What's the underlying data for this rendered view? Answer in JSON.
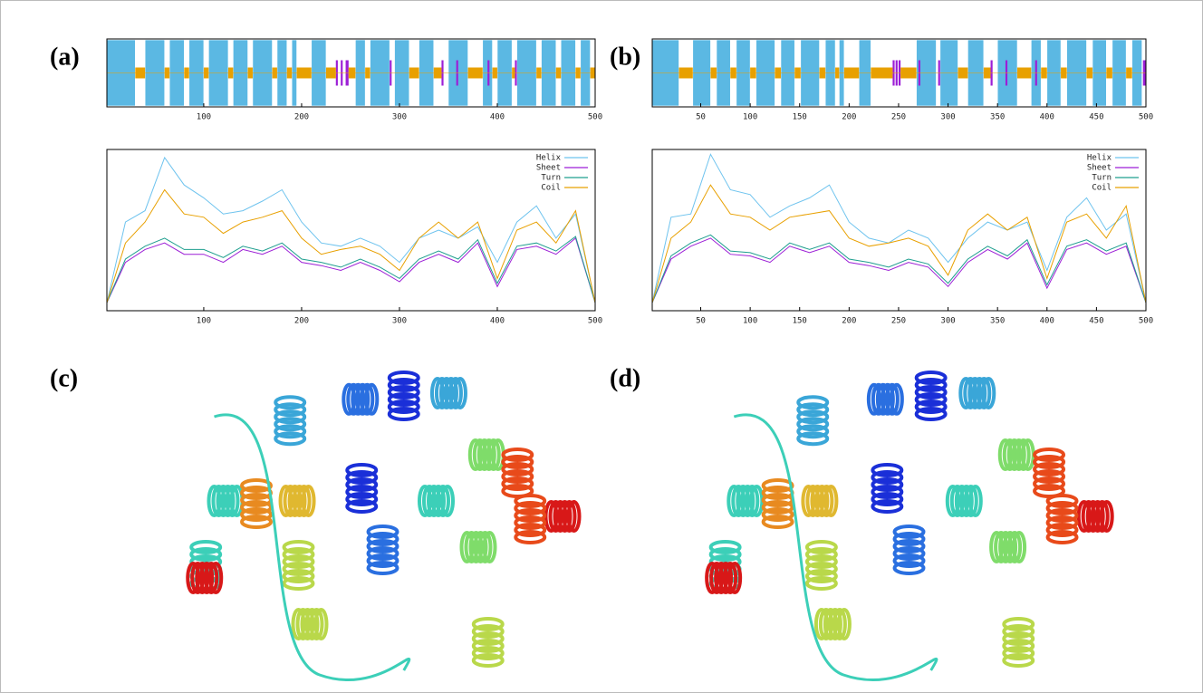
{
  "panel_labels": [
    "(a)",
    "(b)",
    "(c)",
    "(d)"
  ],
  "chart_data": [
    {
      "type": "track",
      "xlim": [
        1,
        500
      ],
      "xticks": [
        100,
        200,
        300,
        400,
        500
      ],
      "series": [
        {
          "color": "#5bb8e3",
          "ranges": [
            [
              1,
              30
            ],
            [
              40,
              60
            ],
            [
              65,
              80
            ],
            [
              85,
              100
            ],
            [
              105,
              125
            ],
            [
              130,
              145
            ],
            [
              150,
              170
            ],
            [
              175,
              185
            ],
            [
              190,
              195
            ],
            [
              210,
              225
            ],
            [
              255,
              265
            ],
            [
              270,
              290
            ],
            [
              295,
              310
            ],
            [
              320,
              335
            ],
            [
              350,
              370
            ],
            [
              385,
              395
            ],
            [
              400,
              415
            ],
            [
              420,
              440
            ],
            [
              445,
              460
            ],
            [
              465,
              480
            ],
            [
              485,
              495
            ]
          ]
        },
        {
          "color": "#9c1fd6",
          "ranges": [
            [
              235,
              237
            ],
            [
              240,
              242
            ],
            [
              245,
              248
            ],
            [
              290,
              292
            ],
            [
              343,
              345
            ],
            [
              358,
              360
            ],
            [
              390,
              392
            ],
            [
              418,
              420
            ]
          ]
        },
        {
          "color": "#e8a000",
          "ranges": [
            [
              30,
              40
            ],
            [
              60,
              65
            ],
            [
              80,
              85
            ],
            [
              100,
              105
            ],
            [
              125,
              130
            ],
            [
              145,
              150
            ],
            [
              170,
              175
            ],
            [
              185,
              190
            ],
            [
              195,
              210
            ],
            [
              225,
              235
            ],
            [
              248,
              255
            ],
            [
              265,
              270
            ],
            [
              310,
              320
            ],
            [
              335,
              343
            ],
            [
              370,
              385
            ],
            [
              395,
              400
            ],
            [
              415,
              418
            ],
            [
              440,
              445
            ],
            [
              460,
              465
            ],
            [
              480,
              485
            ],
            [
              495,
              500
            ]
          ]
        }
      ]
    },
    {
      "type": "line",
      "xlim": [
        1,
        500
      ],
      "xticks": [
        100,
        200,
        300,
        400,
        500
      ],
      "ylim": [
        0,
        1
      ],
      "legend": "upper right",
      "x": [
        1,
        20,
        40,
        60,
        80,
        100,
        120,
        140,
        160,
        180,
        200,
        220,
        240,
        260,
        280,
        300,
        320,
        340,
        360,
        380,
        400,
        420,
        440,
        460,
        480,
        500
      ],
      "series": [
        {
          "name": "Helix",
          "color": "#6ec3ee",
          "values": [
            0.05,
            0.55,
            0.62,
            0.95,
            0.78,
            0.7,
            0.6,
            0.62,
            0.68,
            0.75,
            0.55,
            0.42,
            0.4,
            0.45,
            0.4,
            0.3,
            0.45,
            0.5,
            0.45,
            0.52,
            0.3,
            0.55,
            0.65,
            0.45,
            0.6,
            0.05
          ]
        },
        {
          "name": "Sheet",
          "color": "#9c1fd6",
          "values": [
            0.05,
            0.3,
            0.38,
            0.42,
            0.35,
            0.35,
            0.3,
            0.38,
            0.35,
            0.4,
            0.3,
            0.28,
            0.25,
            0.3,
            0.25,
            0.18,
            0.3,
            0.35,
            0.3,
            0.42,
            0.15,
            0.38,
            0.4,
            0.35,
            0.45,
            0.05
          ]
        },
        {
          "name": "Turn",
          "color": "#1f9f8f",
          "values": [
            0.05,
            0.32,
            0.4,
            0.45,
            0.38,
            0.38,
            0.33,
            0.4,
            0.37,
            0.42,
            0.32,
            0.3,
            0.27,
            0.32,
            0.27,
            0.2,
            0.32,
            0.37,
            0.32,
            0.44,
            0.17,
            0.4,
            0.42,
            0.37,
            0.46,
            0.05
          ]
        },
        {
          "name": "Coil",
          "color": "#e8a000",
          "values": [
            0.05,
            0.42,
            0.55,
            0.75,
            0.6,
            0.58,
            0.48,
            0.55,
            0.58,
            0.62,
            0.45,
            0.35,
            0.38,
            0.4,
            0.35,
            0.25,
            0.45,
            0.55,
            0.45,
            0.55,
            0.2,
            0.5,
            0.55,
            0.42,
            0.62,
            0.05
          ]
        }
      ]
    },
    {
      "type": "track",
      "xlim": [
        1,
        500
      ],
      "xticks": [
        50,
        100,
        150,
        200,
        250,
        300,
        350,
        400,
        450,
        500
      ],
      "series": [
        {
          "color": "#5bb8e3",
          "ranges": [
            [
              1,
              28
            ],
            [
              42,
              60
            ],
            [
              66,
              80
            ],
            [
              86,
              100
            ],
            [
              106,
              125
            ],
            [
              131,
              145
            ],
            [
              151,
              170
            ],
            [
              176,
              186
            ],
            [
              190,
              195
            ],
            [
              210,
              222
            ],
            [
              268,
              288
            ],
            [
              292,
              310
            ],
            [
              320,
              336
            ],
            [
              350,
              370
            ],
            [
              384,
              394
            ],
            [
              400,
              414
            ],
            [
              420,
              440
            ],
            [
              446,
              460
            ],
            [
              466,
              480
            ],
            [
              486,
              496
            ]
          ]
        },
        {
          "color": "#9c1fd6",
          "ranges": [
            [
              244,
              246
            ],
            [
              247,
              249
            ],
            [
              250,
              252
            ],
            [
              270,
              272
            ],
            [
              290,
              292
            ],
            [
              343,
              345
            ],
            [
              358,
              360
            ],
            [
              388,
              390
            ],
            [
              497,
              500
            ]
          ]
        },
        {
          "color": "#e8a000",
          "ranges": [
            [
              28,
              42
            ],
            [
              60,
              66
            ],
            [
              80,
              86
            ],
            [
              100,
              106
            ],
            [
              125,
              131
            ],
            [
              145,
              151
            ],
            [
              170,
              176
            ],
            [
              186,
              190
            ],
            [
              195,
              210
            ],
            [
              222,
              244
            ],
            [
              252,
              268
            ],
            [
              310,
              320
            ],
            [
              336,
              343
            ],
            [
              370,
              384
            ],
            [
              394,
              400
            ],
            [
              414,
              420
            ],
            [
              440,
              446
            ],
            [
              460,
              466
            ],
            [
              480,
              486
            ]
          ]
        }
      ]
    },
    {
      "type": "line",
      "xlim": [
        1,
        500
      ],
      "xticks": [
        50,
        100,
        150,
        200,
        250,
        300,
        350,
        400,
        450,
        500
      ],
      "ylim": [
        0,
        1
      ],
      "legend": "upper right",
      "x": [
        1,
        20,
        40,
        60,
        80,
        100,
        120,
        140,
        160,
        180,
        200,
        220,
        240,
        260,
        280,
        300,
        320,
        340,
        360,
        380,
        400,
        420,
        440,
        460,
        480,
        500
      ],
      "series": [
        {
          "name": "Helix",
          "color": "#6ec3ee",
          "values": [
            0.05,
            0.58,
            0.6,
            0.97,
            0.75,
            0.72,
            0.58,
            0.65,
            0.7,
            0.78,
            0.55,
            0.45,
            0.42,
            0.5,
            0.45,
            0.3,
            0.45,
            0.55,
            0.5,
            0.55,
            0.25,
            0.58,
            0.7,
            0.5,
            0.6,
            0.05
          ]
        },
        {
          "name": "Sheet",
          "color": "#9c1fd6",
          "values": [
            0.05,
            0.32,
            0.4,
            0.45,
            0.35,
            0.34,
            0.3,
            0.4,
            0.36,
            0.4,
            0.3,
            0.28,
            0.25,
            0.3,
            0.27,
            0.15,
            0.3,
            0.38,
            0.32,
            0.42,
            0.14,
            0.38,
            0.42,
            0.35,
            0.4,
            0.05
          ]
        },
        {
          "name": "Turn",
          "color": "#1f9f8f",
          "values": [
            0.05,
            0.34,
            0.42,
            0.47,
            0.37,
            0.36,
            0.32,
            0.42,
            0.38,
            0.42,
            0.32,
            0.3,
            0.27,
            0.32,
            0.29,
            0.17,
            0.32,
            0.4,
            0.34,
            0.44,
            0.16,
            0.4,
            0.44,
            0.37,
            0.42,
            0.05
          ]
        },
        {
          "name": "Coil",
          "color": "#e8a000",
          "values": [
            0.05,
            0.45,
            0.55,
            0.78,
            0.6,
            0.58,
            0.5,
            0.58,
            0.6,
            0.62,
            0.45,
            0.4,
            0.42,
            0.45,
            0.4,
            0.22,
            0.5,
            0.6,
            0.5,
            0.58,
            0.2,
            0.55,
            0.6,
            0.45,
            0.65,
            0.05
          ]
        }
      ]
    }
  ]
}
